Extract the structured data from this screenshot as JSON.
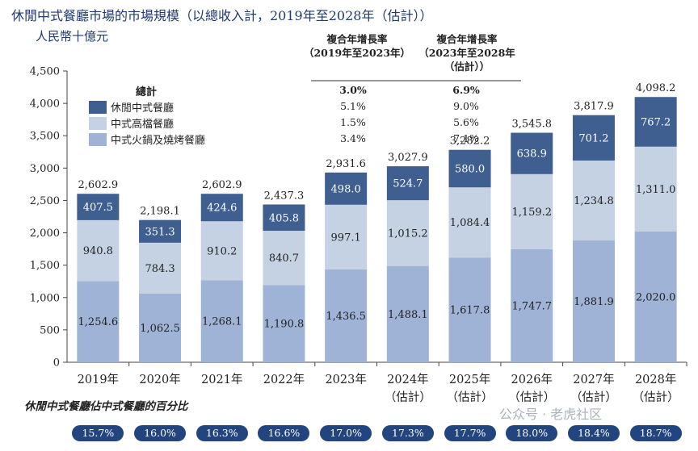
{
  "title": "休閒中式餐廳市場的市場規模（以總收入計，2019年至2028年（估計））",
  "unit_label": "人民幣十億元",
  "cagr": {
    "headers": [
      {
        "line1": "複合年增長率",
        "line2": "（2019年至2023年）",
        "line3": ""
      },
      {
        "line1": "複合年增長率",
        "line2": "（2023年至2028年",
        "line3": "（估計））"
      }
    ],
    "legend_total_label": "總計",
    "rows": [
      {
        "name": "總計",
        "v1": "3.0%",
        "v2": "6.9%"
      },
      {
        "name": "休閒中式餐廳",
        "v1": "5.1%",
        "v2": "9.0%"
      },
      {
        "name": "中式高檔餐廳",
        "v1": "1.5%",
        "v2": "5.6%"
      },
      {
        "name": "中式火鍋及燒烤餐廳",
        "v1": "3.4%",
        "v2": "7.1%"
      }
    ]
  },
  "colors": {
    "casual": "#3f5f91",
    "highend": "#c5d2e3",
    "hotpot": "#9fb3d6",
    "pill": "#22457f",
    "axis": "#444444"
  },
  "chart_data": {
    "type": "bar",
    "stacked": true,
    "categories": [
      {
        "line1": "2019年",
        "line2": ""
      },
      {
        "line1": "2020年",
        "line2": ""
      },
      {
        "line1": "2021年",
        "line2": ""
      },
      {
        "line1": "2022年",
        "line2": ""
      },
      {
        "line1": "2023年",
        "line2": ""
      },
      {
        "line1": "2024年",
        "line2": "（估計）"
      },
      {
        "line1": "2025年",
        "line2": "（估計）"
      },
      {
        "line1": "2026年",
        "line2": "（估計）"
      },
      {
        "line1": "2027年",
        "line2": "（估計）"
      },
      {
        "line1": "2028年",
        "line2": "（估計）"
      }
    ],
    "series": [
      {
        "name": "中式火鍋及燒烤餐廳",
        "key": "hotpot",
        "values": [
          1254.6,
          1062.5,
          1268.1,
          1190.8,
          1436.5,
          1488.1,
          1617.8,
          1747.7,
          1881.9,
          2020.0
        ],
        "labels": [
          "1,254.6",
          "1,062.5",
          "1,268.1",
          "1,190.8",
          "1,436.5",
          "1,488.1",
          "1,617.8",
          "1,747.7",
          "1,881.9",
          "2,020.0"
        ]
      },
      {
        "name": "中式高檔餐廳",
        "key": "highend",
        "values": [
          940.8,
          784.3,
          910.2,
          840.7,
          997.1,
          1015.2,
          1084.4,
          1159.2,
          1234.8,
          1311.0
        ],
        "labels": [
          "940.8",
          "784.3",
          "910.2",
          "840.7",
          "997.1",
          "1,015.2",
          "1,084.4",
          "1,159.2",
          "1,234.8",
          "1,311.0"
        ]
      },
      {
        "name": "休閒中式餐廳",
        "key": "casual",
        "values": [
          407.5,
          351.3,
          424.6,
          405.8,
          498.0,
          524.7,
          580.0,
          638.9,
          701.2,
          767.2
        ],
        "labels": [
          "407.5",
          "351.3",
          "424.6",
          "405.8",
          "498.0",
          "524.7",
          "580.0",
          "638.9",
          "701.2",
          "767.2"
        ]
      }
    ],
    "totals": [
      2602.9,
      2198.1,
      2602.9,
      2437.3,
      2931.6,
      3027.9,
      3282.2,
      3545.8,
      3817.9,
      4098.2
    ],
    "total_labels": [
      "2,602.9",
      "2,198.1",
      "2,602.9",
      "2,437.3",
      "2,931.6",
      "3,027.9",
      "3,282.2",
      "3,545.8",
      "3,817.9",
      "4,098.2"
    ],
    "ylim": [
      0,
      4500
    ],
    "yticks": [
      0,
      500,
      1000,
      1500,
      2000,
      2500,
      3000,
      3500,
      4000,
      4500
    ],
    "ytick_labels": [
      "0",
      "500",
      "1,000",
      "1,500",
      "2,000",
      "2,500",
      "3,000",
      "3,500",
      "4,000",
      "4,500"
    ],
    "ylabel": "人民幣十億元",
    "xlabel": ""
  },
  "share": {
    "title": "休閒中式餐廳佔中式餐廳的百分比",
    "values": [
      "15.7%",
      "16.0%",
      "16.3%",
      "16.6%",
      "17.0%",
      "17.3%",
      "17.7%",
      "18.0%",
      "18.4%",
      "18.7%"
    ]
  },
  "watermark": "公众号 · 老虎社区"
}
